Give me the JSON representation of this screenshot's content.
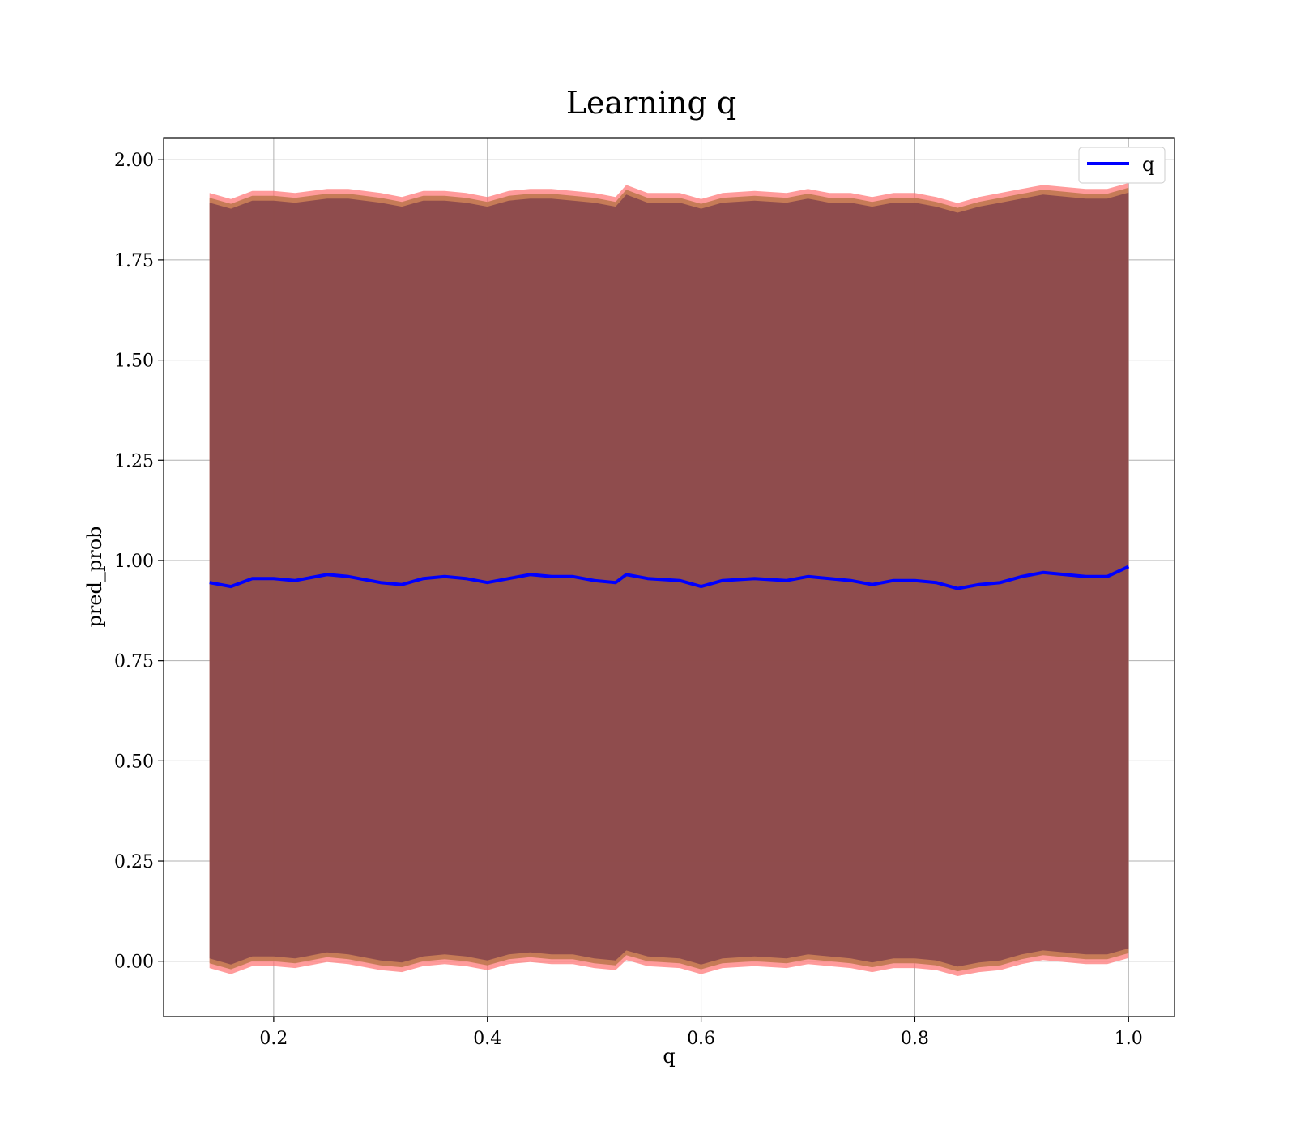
{
  "chart_data": {
    "type": "line",
    "title": "Learning q",
    "xlabel": "q",
    "ylabel": "pred_prob",
    "xlim": [
      0.097,
      1.043
    ],
    "ylim": [
      -0.138,
      2.055
    ],
    "xticks": [
      0.2,
      0.4,
      0.6,
      0.8,
      1.0
    ],
    "xtick_labels": [
      "0.2",
      "0.4",
      "0.6",
      "0.8",
      "1.0"
    ],
    "yticks": [
      0.0,
      0.25,
      0.5,
      0.75,
      1.0,
      1.25,
      1.5,
      1.75,
      2.0
    ],
    "ytick_labels": [
      "0.00",
      "0.25",
      "0.50",
      "0.75",
      "1.00",
      "1.25",
      "1.50",
      "1.75",
      "2.00"
    ],
    "grid": true,
    "legend": {
      "placement": "top-right",
      "entries": [
        "q"
      ]
    },
    "colors": {
      "line": "#0000ff",
      "band_inner": "#7a3a4a",
      "band_outer": "#ff7070",
      "band_mid": "#c07850",
      "grid": "#b0b0b0"
    },
    "series": [
      {
        "name": "q",
        "x": [
          0.14,
          0.16,
          0.18,
          0.2,
          0.22,
          0.25,
          0.27,
          0.3,
          0.32,
          0.34,
          0.36,
          0.38,
          0.4,
          0.42,
          0.44,
          0.46,
          0.48,
          0.5,
          0.52,
          0.53,
          0.55,
          0.58,
          0.6,
          0.62,
          0.65,
          0.68,
          0.7,
          0.72,
          0.74,
          0.76,
          0.78,
          0.8,
          0.82,
          0.84,
          0.86,
          0.88,
          0.9,
          0.92,
          0.94,
          0.96,
          0.98,
          1.0
        ],
        "y": [
          0.945,
          0.935,
          0.955,
          0.955,
          0.95,
          0.965,
          0.96,
          0.945,
          0.94,
          0.955,
          0.96,
          0.955,
          0.945,
          0.955,
          0.965,
          0.96,
          0.96,
          0.95,
          0.945,
          0.965,
          0.955,
          0.95,
          0.935,
          0.95,
          0.955,
          0.95,
          0.96,
          0.955,
          0.95,
          0.94,
          0.95,
          0.95,
          0.945,
          0.93,
          0.94,
          0.945,
          0.96,
          0.97,
          0.965,
          0.96,
          0.96,
          0.985
        ]
      }
    ],
    "band": {
      "x": [
        0.14,
        0.16,
        0.18,
        0.2,
        0.22,
        0.25,
        0.27,
        0.3,
        0.32,
        0.34,
        0.36,
        0.38,
        0.4,
        0.42,
        0.44,
        0.46,
        0.48,
        0.5,
        0.52,
        0.53,
        0.55,
        0.58,
        0.6,
        0.62,
        0.65,
        0.68,
        0.7,
        0.72,
        0.74,
        0.76,
        0.78,
        0.8,
        0.82,
        0.84,
        0.86,
        0.88,
        0.9,
        0.92,
        0.94,
        0.96,
        0.98,
        1.0
      ],
      "upper": [
        1.905,
        1.89,
        1.91,
        1.91,
        1.905,
        1.915,
        1.915,
        1.905,
        1.895,
        1.91,
        1.91,
        1.905,
        1.895,
        1.91,
        1.915,
        1.915,
        1.91,
        1.905,
        1.895,
        1.925,
        1.905,
        1.905,
        1.89,
        1.905,
        1.91,
        1.905,
        1.915,
        1.905,
        1.905,
        1.895,
        1.905,
        1.905,
        1.895,
        1.88,
        1.895,
        1.905,
        1.915,
        1.925,
        1.92,
        1.915,
        1.915,
        1.93
      ],
      "lower": [
        -0.005,
        -0.02,
        0.0,
        0.0,
        -0.005,
        0.01,
        0.005,
        -0.01,
        -0.015,
        0.0,
        0.005,
        0.0,
        -0.01,
        0.005,
        0.01,
        0.005,
        0.005,
        -0.005,
        -0.01,
        0.015,
        0.0,
        -0.005,
        -0.02,
        -0.005,
        0.0,
        -0.005,
        0.005,
        0.0,
        -0.005,
        -0.015,
        -0.005,
        -0.005,
        -0.01,
        -0.025,
        -0.015,
        -0.01,
        0.005,
        0.015,
        0.01,
        0.005,
        0.005,
        0.02
      ]
    }
  }
}
